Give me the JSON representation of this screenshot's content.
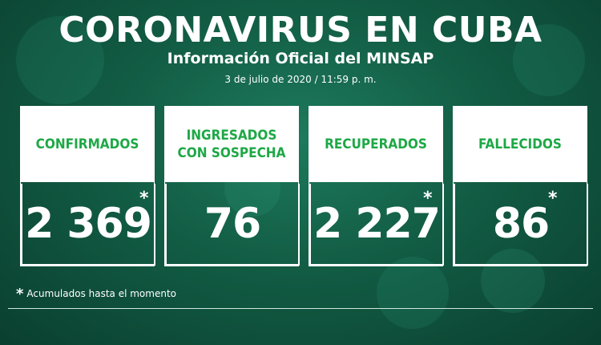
{
  "header": {
    "title": "CORONAVIRUS EN CUBA",
    "subtitle": "Información Oficial del MINSAP",
    "date": "3 de julio de 2020 / 11:59 p. m."
  },
  "cards": [
    {
      "label": "CONFIRMADOS",
      "value": "2 369",
      "marker": "*"
    },
    {
      "label_line1": "INGRESADOS",
      "label_line2": "CON SOSPECHA",
      "value": "76"
    },
    {
      "label": "RECUPERADOS",
      "value": "2 227",
      "marker": "*"
    },
    {
      "label": "FALLECIDOS",
      "value": "86",
      "marker": "*"
    }
  ],
  "footnote": {
    "marker": "*",
    "text": "Acumulados hasta el momento"
  },
  "colors": {
    "background": "#125c44",
    "label_green": "#1ea846",
    "white": "#ffffff"
  }
}
